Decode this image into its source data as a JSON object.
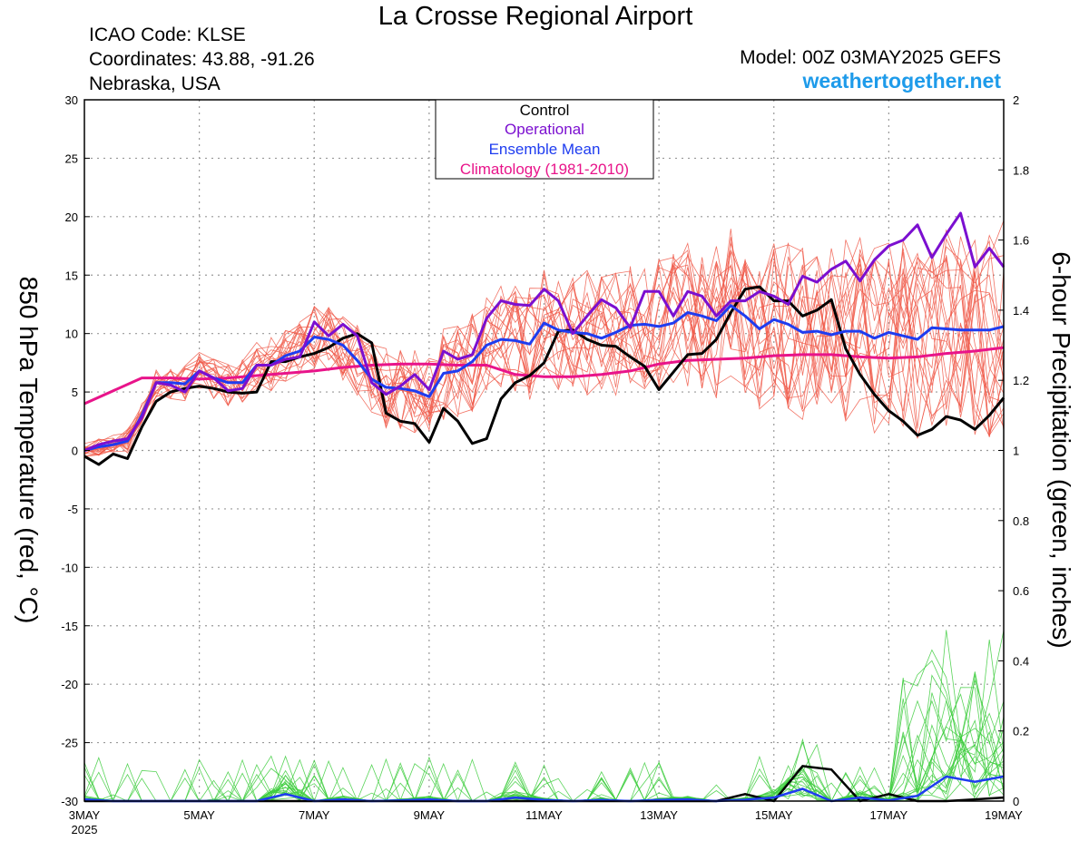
{
  "header": {
    "title": "La Crosse Regional Airport",
    "icao": "ICAO Code: KLSE",
    "coords": "Coordinates: 43.88, -91.26",
    "location": "Nebraska, USA",
    "model": "Model: 00Z 03MAY2025 GEFS",
    "site": "weathertogether.net"
  },
  "colors": {
    "control": "#000000",
    "operational": "#7b0fd0",
    "ensemble_mean": "#1e3cf0",
    "climatology": "#e8148a",
    "members_temp": "#f05a4a",
    "members_precip": "#3ccc3c",
    "site": "#1e9bea"
  },
  "chart_data": {
    "type": "line",
    "title": "La Crosse Regional Airport",
    "ylabel": "850 hPa Temperature (red, °C)",
    "y2label": "6-hour Precipitation (green, inches)",
    "ylim": [
      -30,
      30
    ],
    "y2lim": [
      0,
      2
    ],
    "yticks": [
      -30,
      -25,
      -20,
      -15,
      -10,
      -5,
      0,
      5,
      10,
      15,
      20,
      25,
      30
    ],
    "y2ticks": [
      0,
      0.2,
      0.4,
      0.6,
      0.8,
      1,
      1.2,
      1.4,
      1.6,
      1.8,
      2
    ],
    "y2ticklabels": [
      "0",
      "0.2",
      "0.4",
      "0.6",
      "0.8",
      "1",
      "1.2",
      "1.4",
      "1.6",
      "1.8",
      "2"
    ],
    "xlim": [
      0,
      16
    ],
    "xticks": [
      0,
      2,
      4,
      6,
      8,
      10,
      12,
      14,
      16
    ],
    "xticklabels": [
      "3MAY",
      "5MAY",
      "7MAY",
      "9MAY",
      "11MAY",
      "13MAY",
      "15MAY",
      "17MAY",
      "19MAY"
    ],
    "xyearlabel": "2025",
    "grid": true,
    "legend": {
      "placement": "top-center",
      "entries": [
        "Control",
        "Operational",
        "Ensemble Mean",
        "Climatology (1981-2010)"
      ]
    },
    "temperature_series": [
      {
        "name": "Control",
        "key": "control",
        "x": [
          0,
          0.25,
          0.5,
          0.75,
          1,
          1.25,
          1.5,
          1.75,
          2,
          2.25,
          2.5,
          2.75,
          3,
          3.25,
          3.5,
          3.75,
          4,
          4.25,
          4.5,
          4.75,
          5,
          5.25,
          5.5,
          5.75,
          6,
          6.25,
          6.5,
          6.75,
          7,
          7.25,
          7.5,
          7.75,
          8,
          8.25,
          8.5,
          8.75,
          9,
          9.25,
          9.5,
          9.75,
          10,
          10.25,
          10.5,
          10.75,
          11,
          11.25,
          11.5,
          11.75,
          12,
          12.25,
          12.5,
          12.75,
          13,
          13.25,
          13.5,
          13.75,
          14,
          14.25,
          14.5,
          14.75,
          15,
          15.25,
          15.5,
          15.75,
          16
        ],
        "y": [
          -0.5,
          -1.2,
          -0.3,
          -0.7,
          2,
          4.2,
          5,
          5.3,
          5.5,
          5.3,
          5,
          4.9,
          5,
          7.6,
          7.6,
          8,
          8.3,
          8.8,
          9.6,
          10,
          9.2,
          3.2,
          2.5,
          2.3,
          0.7,
          3.6,
          2.5,
          0.6,
          1,
          4.4,
          5.8,
          6.4,
          7.5,
          10.2,
          10.3,
          9.5,
          9,
          8.9,
          8,
          7.2,
          5.2,
          6.7,
          8.2,
          8.3,
          9.5,
          11.8,
          13.8,
          14,
          12.8,
          12.8,
          11.5,
          12,
          12.9,
          8.7,
          6.5,
          4.8,
          3.4,
          2.5,
          1.3,
          1.8,
          2.9,
          2.6,
          1.8,
          3,
          4.5
        ]
      },
      {
        "name": "Operational",
        "key": "operational",
        "x": [
          0,
          0.25,
          0.5,
          0.75,
          1,
          1.25,
          1.5,
          1.75,
          2,
          2.25,
          2.5,
          2.75,
          3,
          3.25,
          3.5,
          3.75,
          4,
          4.25,
          4.5,
          4.75,
          5,
          5.25,
          5.5,
          5.75,
          6,
          6.25,
          6.5,
          6.75,
          7,
          7.25,
          7.5,
          7.75,
          8,
          8.25,
          8.5,
          8.75,
          9,
          9.25,
          9.5,
          9.75,
          10,
          10.25,
          10.5,
          10.75,
          11,
          11.25,
          11.5,
          11.75,
          12,
          12.25,
          12.5,
          12.75,
          13,
          13.25,
          13.5,
          13.75,
          14,
          14.25,
          14.5,
          14.75,
          15,
          15.25,
          15.5,
          15.75,
          16
        ],
        "y": [
          0,
          0.5,
          0.8,
          1,
          2.8,
          5.8,
          5.6,
          5,
          6.8,
          6.2,
          5.1,
          5.3,
          7.3,
          7.3,
          7.8,
          8,
          11,
          9.8,
          10.8,
          9.8,
          5.8,
          4.8,
          5.5,
          6.5,
          5.2,
          8.5,
          7.8,
          8.2,
          11.3,
          12.8,
          12.5,
          12.4,
          13.8,
          12.8,
          10,
          11.5,
          12.9,
          12.2,
          10.5,
          13.6,
          13.6,
          11.5,
          13.6,
          13.2,
          11.5,
          12.8,
          12.8,
          13.6,
          13.2,
          12.5,
          14.9,
          14.4,
          15.5,
          16.2,
          14.5,
          16.3,
          17.5,
          18,
          19.3,
          16.5,
          18.5,
          20.3,
          15.7,
          17.3,
          15.7
        ]
      },
      {
        "name": "Ensemble Mean",
        "key": "ensemble_mean",
        "x": [
          0,
          0.25,
          0.5,
          0.75,
          1,
          1.25,
          1.5,
          1.75,
          2,
          2.25,
          2.5,
          2.75,
          3,
          3.25,
          3.5,
          3.75,
          4,
          4.25,
          4.5,
          4.75,
          5,
          5.25,
          5.5,
          5.75,
          6,
          6.25,
          6.5,
          6.75,
          7,
          7.25,
          7.5,
          7.75,
          8,
          8.25,
          8.5,
          8.75,
          9,
          9.25,
          9.5,
          9.75,
          10,
          10.25,
          10.5,
          10.75,
          11,
          11.25,
          11.5,
          11.75,
          12,
          12.25,
          12.5,
          12.75,
          13,
          13.25,
          13.5,
          13.75,
          14,
          14.25,
          14.5,
          14.75,
          15,
          15.25,
          15.5,
          15.75,
          16
        ],
        "y": [
          0,
          0.3,
          0.5,
          0.8,
          3,
          5.8,
          5.8,
          5.7,
          6.8,
          6.2,
          5.8,
          5.8,
          7.3,
          7.3,
          8.1,
          8.5,
          9.7,
          9.5,
          9,
          7.7,
          6.1,
          5.4,
          5.3,
          5.1,
          4.6,
          6.6,
          6.8,
          7.6,
          9,
          9.5,
          9.4,
          9.1,
          10.9,
          10.3,
          10.1,
          10,
          9.6,
          10.1,
          10.7,
          10.8,
          10.6,
          10.9,
          11.8,
          11.5,
          11.1,
          12.4,
          11.5,
          10.4,
          11.2,
          10.8,
          10.1,
          10.2,
          9.9,
          10.2,
          10.2,
          9.6,
          10.1,
          9.8,
          9.5,
          10.5,
          10.4,
          10.3,
          10.3,
          10.3,
          10.6
        ]
      },
      {
        "name": "Climatology (1981-2010)",
        "key": "climatology",
        "x": [
          0,
          1,
          1.5,
          2,
          2.5,
          3,
          3.5,
          4,
          4.5,
          5,
          5.5,
          6,
          6.5,
          7,
          7.5,
          8,
          8.5,
          9,
          9.5,
          10,
          10.5,
          11,
          11.5,
          12,
          12.5,
          13,
          13.5,
          14,
          14.5,
          15,
          15.5,
          16
        ],
        "y": [
          4,
          6.2,
          6.2,
          6.1,
          6.2,
          6.4,
          6.6,
          6.8,
          7.1,
          7.3,
          7.4,
          7.4,
          7.3,
          7.3,
          6.5,
          6.3,
          6.3,
          6.5,
          6.8,
          7.4,
          7.7,
          7.8,
          7.9,
          8.1,
          8.2,
          8.2,
          8.0,
          7.9,
          8.0,
          8.3,
          8.5,
          8.8
        ]
      }
    ],
    "precipitation_series": [
      {
        "name": "Control",
        "key": "control",
        "x": [
          0,
          1,
          2,
          3,
          4,
          5,
          6,
          7,
          8,
          9,
          10,
          11,
          11.5,
          12,
          12.5,
          13,
          13.5,
          14,
          14.5,
          15,
          15.5,
          16
        ],
        "y": [
          0,
          0,
          0,
          0,
          0,
          0,
          0,
          0,
          0,
          0,
          0,
          0,
          0.02,
          0,
          0.1,
          0.09,
          0,
          0.02,
          0,
          0,
          0.005,
          0.01
        ]
      },
      {
        "name": "Ensemble Mean",
        "key": "ensemble_mean",
        "x": [
          0,
          0.5,
          1,
          1.5,
          2,
          2.5,
          3,
          3.5,
          4,
          4.5,
          5,
          5.5,
          6,
          6.5,
          7,
          7.5,
          8,
          8.5,
          9,
          9.5,
          10,
          10.5,
          11,
          11.5,
          12,
          12.5,
          13,
          13.5,
          14,
          14.5,
          15,
          15.5,
          16
        ],
        "y": [
          0.005,
          0,
          0,
          0,
          0,
          0,
          0,
          0.02,
          0,
          0.005,
          0,
          0.002,
          0.005,
          0,
          0,
          0.01,
          0.003,
          0,
          0.003,
          0,
          0.003,
          0.005,
          0,
          0.004,
          0.01,
          0.035,
          0,
          0.01,
          0.002,
          0.015,
          0.07,
          0.055,
          0.07
        ]
      }
    ],
    "temperature_members_count": 20,
    "precipitation_members_count": 20
  }
}
